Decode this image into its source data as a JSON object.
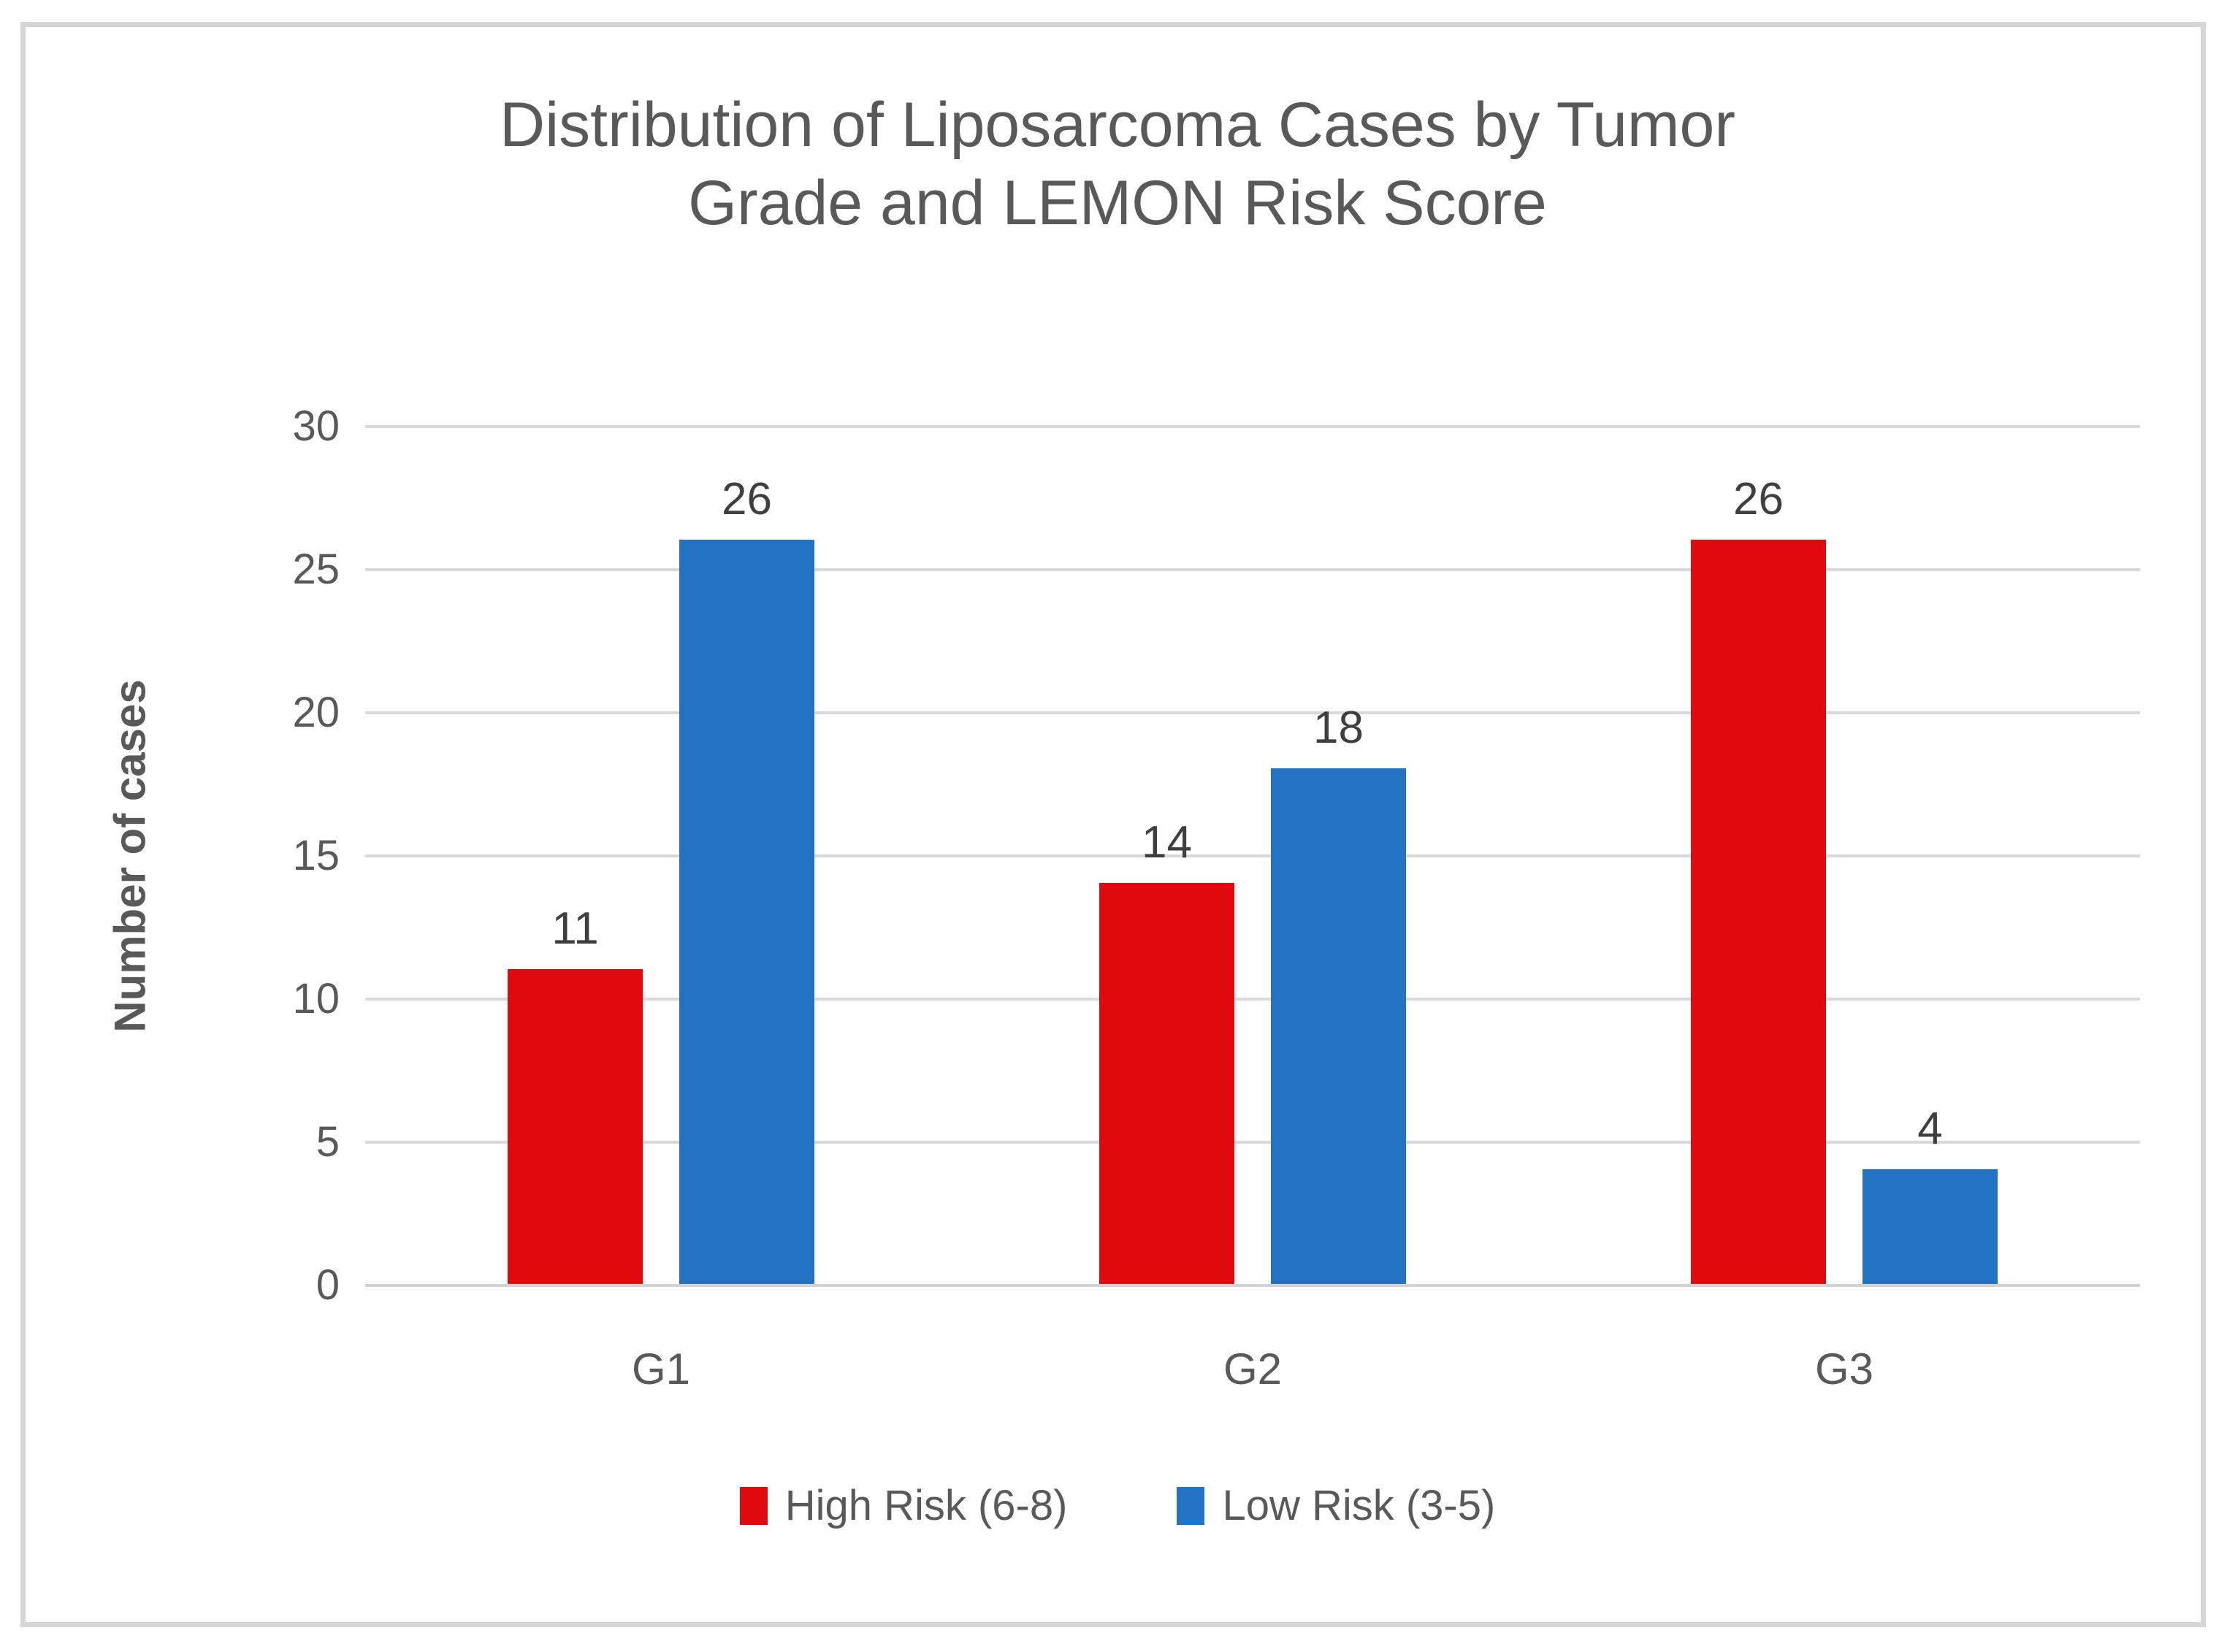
{
  "chart_data": {
    "type": "bar",
    "title": "Distribution of Liposarcoma Cases by Tumor Grade and LEMON Risk Score",
    "categories": [
      "G1",
      "G2",
      "G3"
    ],
    "series": [
      {
        "name": "High Risk (6-8)",
        "color": "#e00a0f",
        "values": [
          11,
          14,
          26
        ]
      },
      {
        "name": "Low Risk (3-5)",
        "color": "#2273c3",
        "values": [
          26,
          18,
          4
        ]
      }
    ],
    "xlabel": "",
    "ylabel": "Number of cases",
    "ylim": [
      0,
      30
    ],
    "yticks": [
      0,
      5,
      10,
      15,
      20,
      25,
      30
    ],
    "grid": "horizontal",
    "legend_position": "bottom",
    "data_labels": true
  },
  "display": {
    "title_line1": "Distribution of Liposarcoma Cases by Tumor",
    "title_line2": "Grade and LEMON Risk Score",
    "yticks_top_to_bottom": [
      "30",
      "25",
      "20",
      "15",
      "10",
      "5",
      "0"
    ],
    "colors": {
      "high_risk_red": "#e00a0f",
      "low_risk_blue": "#2273c3",
      "gridline": "#d9d9d9",
      "frame_border": "#d6d6d6",
      "axis_text": "#595959",
      "data_label_text": "#3f3f3f"
    }
  }
}
